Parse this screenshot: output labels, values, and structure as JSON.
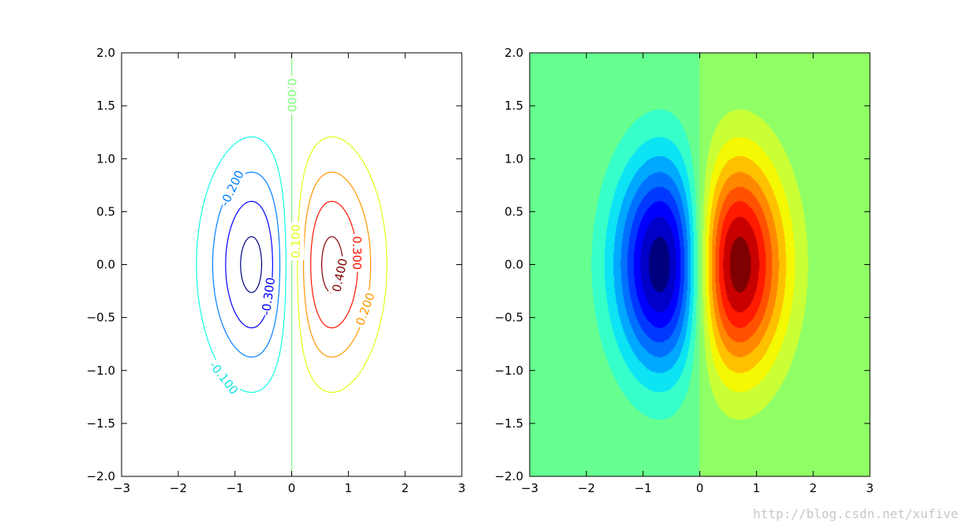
{
  "watermark": "http://blog.csdn.net/xufive",
  "chart_data": [
    {
      "type": "contour",
      "function": "x*exp(-x^2-y^2)",
      "xlim": [
        -3,
        3
      ],
      "ylim": [
        -2,
        2
      ],
      "xticks": [
        "−3",
        "−2",
        "−1",
        "0",
        "1",
        "2",
        "3"
      ],
      "yticks": [
        "2.0",
        "1.5",
        "1.0",
        "0.5",
        "0.0",
        "−0.5",
        "−1.0",
        "−1.5",
        "−2.0"
      ],
      "levels": [
        -0.4,
        -0.3,
        -0.2,
        -0.1,
        0.0,
        0.1,
        0.2,
        0.3,
        0.4
      ],
      "level_colors": [
        "#00007f",
        "#0000ff",
        "#0080ff",
        "#14ffe2",
        "#7cff79",
        "#e2ff14",
        "#ff9800",
        "#ff1300",
        "#7f0000"
      ],
      "contour_labels": [
        {
          "text": "-0.100",
          "level": -0.1,
          "x": -1.2,
          "y": -1.07,
          "color": "#14e2e2",
          "angle": 52
        },
        {
          "text": "-0.200",
          "level": -0.2,
          "x": -1.05,
          "y": 0.72,
          "color": "#0080ff",
          "angle": -64
        },
        {
          "text": "-0.300",
          "level": -0.3,
          "x": -0.41,
          "y": -0.3,
          "color": "#0000ff",
          "angle": -82
        },
        {
          "text": "0.000",
          "level": 0.0,
          "x": 0.0,
          "y": 1.6,
          "color": "#7cff79",
          "angle": 90
        },
        {
          "text": "0.100",
          "level": 0.1,
          "x": 0.08,
          "y": 0.22,
          "color": "#e2ff14",
          "angle": -90
        },
        {
          "text": "0.200",
          "level": 0.2,
          "x": 1.3,
          "y": -0.42,
          "color": "#ff9800",
          "angle": -70
        },
        {
          "text": "0.300",
          "level": 0.3,
          "x": 1.15,
          "y": 0.11,
          "color": "#ff1300",
          "angle": 90
        },
        {
          "text": "0.400",
          "level": 0.4,
          "x": 0.85,
          "y": -0.1,
          "color": "#7f0000",
          "angle": -78
        }
      ]
    },
    {
      "type": "filled_contour",
      "function": "x*exp(-x^2-y^2)",
      "xlim": [
        -3,
        3
      ],
      "ylim": [
        -2,
        2
      ],
      "xticks": [
        "−3",
        "−2",
        "−1",
        "0",
        "1",
        "2",
        "3"
      ],
      "yticks": [
        "2.0",
        "1.5",
        "1.0",
        "0.5",
        "0.0",
        "−0.5",
        "−1.0",
        "−1.5",
        "−2.0"
      ],
      "levels": [
        -0.45,
        -0.4,
        -0.35,
        -0.3,
        -0.25,
        -0.2,
        -0.15,
        -0.1,
        -0.05,
        0.0,
        0.05,
        0.1,
        0.15,
        0.2,
        0.25,
        0.3,
        0.35,
        0.4,
        0.45
      ],
      "band_colors": [
        "#00007f",
        "#0000c8",
        "#0000ff",
        "#0038ff",
        "#0070ff",
        "#00a8ff",
        "#0ce4f4",
        "#36ffca",
        "#66ff90",
        "#90ff66",
        "#caff36",
        "#f4f802",
        "#ffc000",
        "#ff8800",
        "#ff5100",
        "#ff1a00",
        "#c80000",
        "#7f0000"
      ]
    }
  ]
}
